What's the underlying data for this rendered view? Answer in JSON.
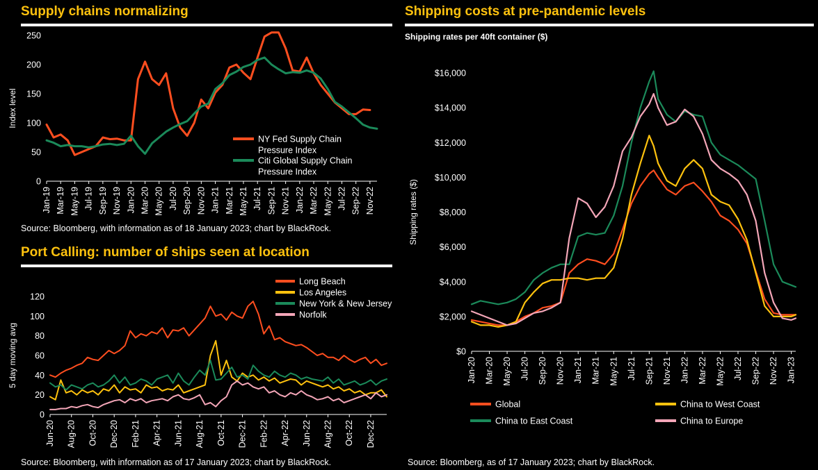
{
  "colors": {
    "accent": "#FFC20E",
    "background": "#000000",
    "text": "#FFFFFF"
  },
  "panels": {
    "supply": {
      "title": "Supply chains normalizing",
      "source": "Source: Bloomberg, with information as of 18 January 2023; chart by BlackRock."
    },
    "port": {
      "title": "Port Calling: number of ships seen at location",
      "source": "Source: Bloomberg, with information as of 17 January 2023; chart by BlackRock."
    },
    "ship": {
      "title": "Shipping costs at pre-pandemic levels",
      "subtitle": "Shipping rates per 40ft container ($)",
      "source": "Source: Bloomberg, as of 17 January 2023; chart by BlackRock."
    }
  },
  "chart_data": [
    {
      "id": "supply",
      "type": "line",
      "title": "Supply chains normalizing",
      "ylabel": "Index level",
      "ylim": [
        0,
        250
      ],
      "yticks": [
        0,
        50,
        100,
        150,
        200,
        250
      ],
      "xlim": [
        0,
        47
      ],
      "xticks": [
        {
          "i": 0,
          "label": "Jan-19"
        },
        {
          "i": 2,
          "label": "Mar-19"
        },
        {
          "i": 4,
          "label": "May-19"
        },
        {
          "i": 6,
          "label": "Jul-19"
        },
        {
          "i": 8,
          "label": "Sep-19"
        },
        {
          "i": 10,
          "label": "Nov-19"
        },
        {
          "i": 12,
          "label": "Jan-20"
        },
        {
          "i": 14,
          "label": "Mar-20"
        },
        {
          "i": 16,
          "label": "May-20"
        },
        {
          "i": 18,
          "label": "Jul-20"
        },
        {
          "i": 20,
          "label": "Sep-20"
        },
        {
          "i": 22,
          "label": "Nov-20"
        },
        {
          "i": 24,
          "label": "Jan-21"
        },
        {
          "i": 26,
          "label": "Mar-21"
        },
        {
          "i": 28,
          "label": "May-21"
        },
        {
          "i": 30,
          "label": "Jul-21"
        },
        {
          "i": 32,
          "label": "Sep-21"
        },
        {
          "i": 34,
          "label": "Nov-21"
        },
        {
          "i": 36,
          "label": "Jan-22"
        },
        {
          "i": 38,
          "label": "Mar-22"
        },
        {
          "i": 40,
          "label": "May-22"
        },
        {
          "i": 42,
          "label": "Jul-22"
        },
        {
          "i": 44,
          "label": "Sep-22"
        },
        {
          "i": 46,
          "label": "Nov-22"
        }
      ],
      "legend_position": "center-right",
      "series": [
        {
          "name": "NY Fed Supply Chain Pressure Index",
          "color": "#FF4E1F",
          "values": [
            97,
            75,
            80,
            70,
            45,
            50,
            55,
            60,
            75,
            72,
            73,
            70,
            70,
            175,
            205,
            175,
            165,
            185,
            125,
            92,
            78,
            100,
            140,
            125,
            152,
            165,
            195,
            200,
            186,
            175,
            212,
            248,
            255,
            255,
            228,
            190,
            188,
            212,
            185,
            165,
            150,
            135,
            125,
            115,
            115,
            123,
            122
          ]
        },
        {
          "name": "Citi Global Supply Chain Pressure Index",
          "color": "#1B8A5A",
          "values": [
            70,
            66,
            60,
            62,
            60,
            60,
            58,
            60,
            63,
            64,
            62,
            64,
            78,
            60,
            47,
            65,
            75,
            85,
            92,
            98,
            103,
            116,
            128,
            133,
            158,
            168,
            182,
            188,
            196,
            200,
            208,
            212,
            200,
            192,
            185,
            187,
            186,
            190,
            186,
            176,
            158,
            136,
            128,
            118,
            108,
            97,
            92,
            90
          ]
        }
      ]
    },
    {
      "id": "port",
      "type": "line",
      "title": "Port Calling: number of ships seen at location",
      "ylabel": "5 day moving avg",
      "ylim": [
        0,
        120
      ],
      "yticks": [
        0,
        20,
        40,
        60,
        80,
        100,
        120
      ],
      "xlim": [
        0,
        31.5
      ],
      "xticks": [
        {
          "i": 0,
          "label": "Jun-20"
        },
        {
          "i": 2,
          "label": "Aug-20"
        },
        {
          "i": 4,
          "label": "Oct-20"
        },
        {
          "i": 6,
          "label": "Dec-20"
        },
        {
          "i": 8,
          "label": "Feb-21"
        },
        {
          "i": 10,
          "label": "Apr-21"
        },
        {
          "i": 12,
          "label": "Jun-21"
        },
        {
          "i": 14,
          "label": "Aug-21"
        },
        {
          "i": 16,
          "label": "Oct-21"
        },
        {
          "i": 18,
          "label": "Dec-21"
        },
        {
          "i": 20,
          "label": "Feb-22"
        },
        {
          "i": 22,
          "label": "Apr-22"
        },
        {
          "i": 24,
          "label": "Jun-22"
        },
        {
          "i": 26,
          "label": "Aug-22"
        },
        {
          "i": 28,
          "label": "Oct-22"
        },
        {
          "i": 30,
          "label": "Dec-22"
        }
      ],
      "legend_position": "top-right",
      "series_x": [
        0,
        0.5,
        1,
        1.5,
        2,
        2.5,
        3,
        3.5,
        4,
        4.5,
        5,
        5.5,
        6,
        6.5,
        7,
        7.5,
        8,
        8.5,
        9,
        9.5,
        10,
        10.5,
        11,
        11.5,
        12,
        12.5,
        13,
        13.5,
        14,
        14.5,
        15,
        15.5,
        16,
        16.5,
        17,
        17.5,
        18,
        18.5,
        19,
        19.5,
        20,
        20.5,
        21,
        21.5,
        22,
        22.5,
        23,
        23.5,
        24,
        24.5,
        25,
        25.5,
        26,
        26.5,
        27,
        27.5,
        28,
        28.5,
        29,
        29.5,
        30,
        30.5,
        31,
        31.5
      ],
      "series": [
        {
          "name": "Long Beach",
          "color": "#FF4E1F",
          "values": [
            40,
            38,
            42,
            45,
            47,
            50,
            52,
            58,
            56,
            55,
            60,
            65,
            62,
            65,
            70,
            85,
            78,
            82,
            80,
            84,
            82,
            88,
            78,
            86,
            85,
            88,
            80,
            86,
            92,
            98,
            110,
            100,
            102,
            96,
            104,
            100,
            98,
            110,
            115,
            102,
            82,
            90,
            76,
            78,
            74,
            72,
            70,
            71,
            68,
            64,
            60,
            62,
            58,
            58,
            55,
            60,
            56,
            53,
            56,
            58,
            52,
            56,
            50,
            52
          ]
        },
        {
          "name": "Los Angeles",
          "color": "#FFC20E",
          "values": [
            18,
            15,
            35,
            22,
            24,
            20,
            25,
            22,
            24,
            20,
            26,
            24,
            30,
            22,
            28,
            25,
            26,
            22,
            30,
            27,
            28,
            24,
            26,
            25,
            30,
            22,
            24,
            26,
            28,
            30,
            60,
            75,
            40,
            55,
            38,
            34,
            42,
            38,
            40,
            35,
            38,
            34,
            37,
            32,
            34,
            36,
            35,
            30,
            34,
            32,
            30,
            28,
            30,
            26,
            28,
            24,
            26,
            22,
            24,
            20,
            22,
            22,
            25,
            18
          ]
        },
        {
          "name": "New York & New Jersey",
          "color": "#1B8A5A",
          "values": [
            32,
            28,
            30,
            25,
            30,
            28,
            26,
            30,
            32,
            28,
            30,
            34,
            40,
            32,
            38,
            30,
            32,
            36,
            34,
            30,
            36,
            38,
            40,
            32,
            42,
            34,
            30,
            38,
            45,
            40,
            55,
            35,
            36,
            42,
            48,
            38,
            40,
            36,
            50,
            44,
            40,
            38,
            44,
            40,
            38,
            42,
            40,
            36,
            38,
            36,
            35,
            34,
            38,
            32,
            36,
            30,
            32,
            34,
            30,
            32,
            35,
            30,
            34,
            36
          ]
        },
        {
          "name": "Norfolk",
          "color": "#F4A6B8",
          "values": [
            5,
            5,
            6,
            6,
            8,
            7,
            9,
            10,
            8,
            7,
            10,
            12,
            14,
            15,
            12,
            16,
            14,
            16,
            12,
            14,
            15,
            16,
            14,
            18,
            20,
            16,
            15,
            17,
            20,
            10,
            12,
            8,
            14,
            18,
            30,
            34,
            30,
            32,
            28,
            26,
            28,
            22,
            24,
            20,
            18,
            22,
            20,
            24,
            20,
            18,
            15,
            16,
            18,
            14,
            16,
            12,
            14,
            16,
            18,
            20,
            16,
            22,
            18,
            20
          ]
        }
      ]
    },
    {
      "id": "ship",
      "type": "line",
      "title": "Shipping costs at pre-pandemic levels",
      "subtitle": "Shipping rates per 40ft container ($)",
      "ylabel": "Shipping rates ($)",
      "ylim": [
        0,
        16000
      ],
      "yticks": [
        {
          "v": 0,
          "label": "$0"
        },
        {
          "v": 2000,
          "label": "$2,000"
        },
        {
          "v": 4000,
          "label": "$4,000"
        },
        {
          "v": 6000,
          "label": "$6,000"
        },
        {
          "v": 8000,
          "label": "$8,000"
        },
        {
          "v": 10000,
          "label": "$10,000"
        },
        {
          "v": 12000,
          "label": "$12,000"
        },
        {
          "v": 14000,
          "label": "$14,000"
        },
        {
          "v": 16000,
          "label": "$16,000"
        }
      ],
      "xlim": [
        0,
        36.5
      ],
      "xticks": [
        {
          "i": 0,
          "label": "Jan-20"
        },
        {
          "i": 2,
          "label": "Mar-20"
        },
        {
          "i": 4,
          "label": "May-20"
        },
        {
          "i": 6,
          "label": "Jul-20"
        },
        {
          "i": 8,
          "label": "Sep-20"
        },
        {
          "i": 10,
          "label": "Nov-20"
        },
        {
          "i": 12,
          "label": "Jan-21"
        },
        {
          "i": 14,
          "label": "Mar-21"
        },
        {
          "i": 16,
          "label": "May-21"
        },
        {
          "i": 18,
          "label": "Jul-21"
        },
        {
          "i": 20,
          "label": "Sep-21"
        },
        {
          "i": 22,
          "label": "Nov-21"
        },
        {
          "i": 24,
          "label": "Jan-22"
        },
        {
          "i": 26,
          "label": "Mar-22"
        },
        {
          "i": 28,
          "label": "May-22"
        },
        {
          "i": 30,
          "label": "Jul-22"
        },
        {
          "i": 32,
          "label": "Sep-22"
        },
        {
          "i": 34,
          "label": "Nov-22"
        },
        {
          "i": 36,
          "label": "Jan-23"
        }
      ],
      "legend_position": "bottom",
      "series_x": [
        0,
        1,
        2,
        3,
        4,
        5,
        6,
        7,
        8,
        9,
        10,
        11,
        12,
        13,
        14,
        15,
        16,
        17,
        18,
        19,
        20,
        20.5,
        21,
        22,
        23,
        24,
        25,
        26,
        27,
        28,
        29,
        30,
        31,
        32,
        33,
        34,
        35,
        36,
        36.5
      ],
      "series": [
        {
          "name": "Global",
          "color": "#FF4E1F",
          "values": [
            1800,
            1700,
            1600,
            1500,
            1500,
            1700,
            2000,
            2200,
            2500,
            2600,
            2800,
            4500,
            5000,
            5300,
            5200,
            5000,
            5600,
            7000,
            8500,
            9500,
            10200,
            10400,
            10000,
            9300,
            9000,
            9500,
            9700,
            9200,
            8600,
            7800,
            7500,
            7000,
            6200,
            4600,
            3000,
            2200,
            2100,
            2100,
            2100
          ]
        },
        {
          "name": "China to West Coast",
          "color": "#FFC20E",
          "values": [
            1700,
            1500,
            1500,
            1400,
            1500,
            1700,
            2800,
            3400,
            3900,
            4100,
            4100,
            4200,
            4200,
            4100,
            4200,
            4200,
            4800,
            6500,
            9000,
            10800,
            12400,
            11800,
            10800,
            9800,
            9500,
            10500,
            11000,
            10500,
            9000,
            8600,
            8400,
            7600,
            6400,
            4500,
            2600,
            2000,
            2000,
            2000,
            2100
          ]
        },
        {
          "name": "China to East Coast",
          "color": "#1B8A5A",
          "values": [
            2700,
            2900,
            2800,
            2700,
            2800,
            3000,
            3400,
            4100,
            4500,
            4800,
            5000,
            5000,
            6600,
            6800,
            6700,
            6800,
            7800,
            9500,
            12000,
            14000,
            15500,
            16100,
            14500,
            13600,
            13200,
            13800,
            13600,
            13500,
            12000,
            11300,
            11000,
            10700,
            10300,
            9900,
            7500,
            5000,
            4000,
            3800,
            3700
          ]
        },
        {
          "name": "China to Europe",
          "color": "#F4A6B8",
          "values": [
            2300,
            2100,
            1900,
            1700,
            1500,
            1600,
            1900,
            2200,
            2300,
            2500,
            2800,
            6500,
            8800,
            8500,
            7700,
            8300,
            9500,
            11500,
            12300,
            13500,
            14200,
            14800,
            14000,
            13000,
            13200,
            13900,
            13500,
            12500,
            11000,
            10500,
            10200,
            9800,
            9000,
            7500,
            4500,
            2800,
            1900,
            1800,
            1900
          ]
        }
      ]
    }
  ]
}
